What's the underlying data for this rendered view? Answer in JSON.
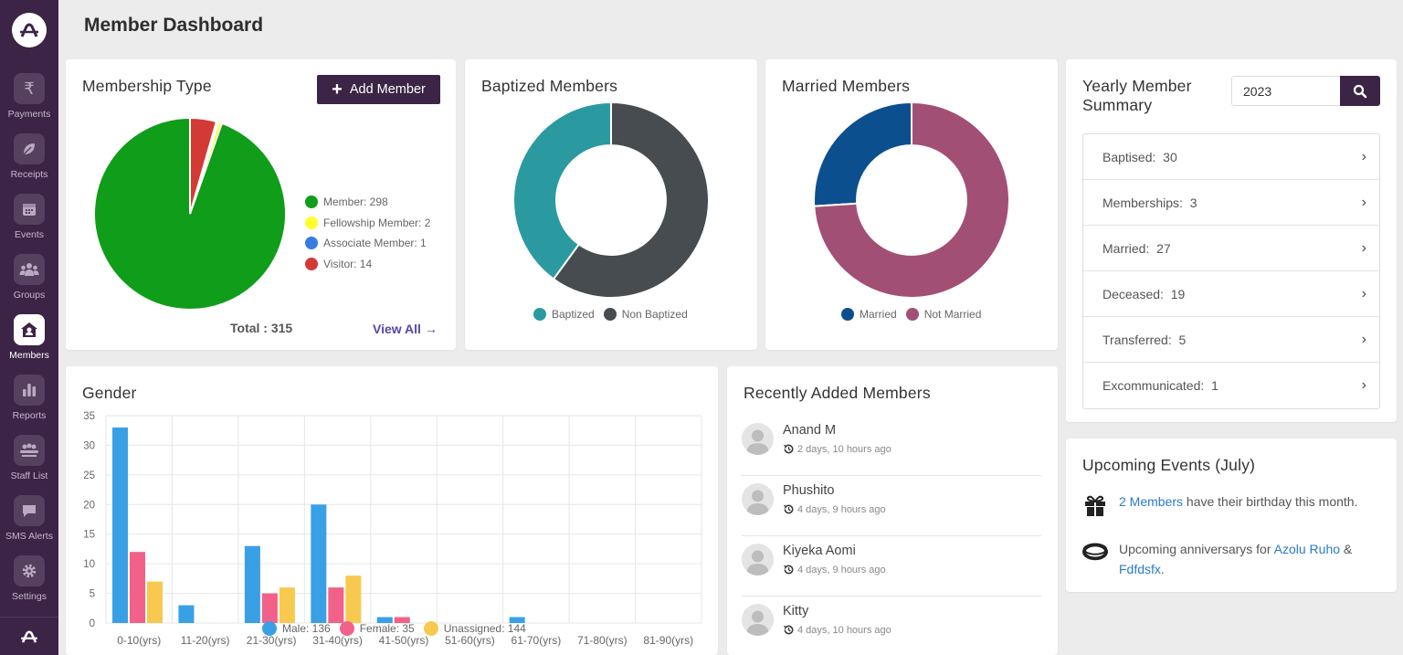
{
  "page": {
    "title": "Member Dashboard"
  },
  "sidebar": {
    "items": [
      {
        "label": "Payments",
        "icon": "rupee-icon"
      },
      {
        "label": "Receipts",
        "icon": "leaf-icon"
      },
      {
        "label": "Events",
        "icon": "calendar-icon"
      },
      {
        "label": "Groups",
        "icon": "group-icon"
      },
      {
        "label": "Members",
        "icon": "home-user-icon",
        "active": true
      },
      {
        "label": "Reports",
        "icon": "bar-chart-icon"
      },
      {
        "label": "Staff List",
        "icon": "staff-icon"
      },
      {
        "label": "SMS Alerts",
        "icon": "message-icon"
      },
      {
        "label": "Settings",
        "icon": "gear-icon"
      }
    ]
  },
  "membership": {
    "title": "Membership Type",
    "add_label": "Add Member",
    "total_label": "Total : 315",
    "view_all": "View All",
    "legend": [
      {
        "label": "Member: 298",
        "color": "#0f9d1a"
      },
      {
        "label": "Fellowship Member: 2",
        "color": "#ffff2b"
      },
      {
        "label": "Associate Member: 1",
        "color": "#3a7be0"
      },
      {
        "label": "Visitor: 14",
        "color": "#d43a35"
      }
    ]
  },
  "baptized": {
    "title": "Baptized Members",
    "legend": [
      {
        "label": "Baptized",
        "color": "#2a9aa0"
      },
      {
        "label": "Non Baptized",
        "color": "#474c51"
      }
    ]
  },
  "married": {
    "title": "Married Members",
    "legend": [
      {
        "label": "Married",
        "color": "#0c4f8e"
      },
      {
        "label": "Not Married",
        "color": "#a24f76"
      }
    ]
  },
  "yearly": {
    "title_line1": "Yearly Member",
    "title_line2": "Summary",
    "year_value": "2023",
    "rows": [
      {
        "label": "Baptised:",
        "value": "30"
      },
      {
        "label": "Memberships:",
        "value": "3"
      },
      {
        "label": "Married:",
        "value": "27"
      },
      {
        "label": "Deceased:",
        "value": "19"
      },
      {
        "label": "Transferred:",
        "value": "5"
      },
      {
        "label": "Excommunicated:",
        "value": "1"
      }
    ]
  },
  "gender": {
    "title": "Gender"
  },
  "recent": {
    "title": "Recently Added Members",
    "members": [
      {
        "name": "Anand M",
        "time": "2 days, 10 hours ago"
      },
      {
        "name": "Phushito",
        "time": "4 days, 9 hours ago"
      },
      {
        "name": "Kiyeka Aomi",
        "time": "4 days, 9 hours ago"
      },
      {
        "name": "Kitty",
        "time": "4 days, 10 hours ago"
      }
    ]
  },
  "events": {
    "title": "Upcoming Events (July)",
    "birthday_link": "2 Members",
    "birthday_text": " have their birthday this month.",
    "anniv_text": "Upcoming anniversarys for ",
    "anniv_link1": "Azolu Ruho",
    "anniv_amp": " &",
    "anniv_link2": "Fdfdsfx",
    "anniv_end": "."
  },
  "chart_data": [
    {
      "type": "pie",
      "title": "Membership Type",
      "labels": [
        "Member",
        "Fellowship Member",
        "Associate Member",
        "Visitor"
      ],
      "values": [
        298,
        2,
        1,
        14
      ],
      "colors": [
        "#0f9d1a",
        "#ffff2b",
        "#3a7be0",
        "#d43a35"
      ]
    },
    {
      "type": "pie",
      "title": "Baptized Members",
      "donut": true,
      "labels": [
        "Baptized",
        "Non Baptized"
      ],
      "values": [
        40,
        60
      ],
      "colors": [
        "#2a9aa0",
        "#474c51"
      ]
    },
    {
      "type": "pie",
      "title": "Married Members",
      "donut": true,
      "labels": [
        "Married",
        "Not Married"
      ],
      "values": [
        26,
        74
      ],
      "colors": [
        "#0c4f8e",
        "#a24f76"
      ]
    },
    {
      "type": "bar",
      "title": "Gender",
      "categories": [
        "0-10(yrs)",
        "11-20(yrs)",
        "21-30(yrs)",
        "31-40(yrs)",
        "41-50(yrs)",
        "51-60(yrs)",
        "61-70(yrs)",
        "71-80(yrs)",
        "81-90(yrs)"
      ],
      "ylim": [
        0,
        35
      ],
      "yticks": [
        0,
        5,
        10,
        15,
        20,
        25,
        30,
        35
      ],
      "grid": true,
      "series": [
        {
          "name": "Male",
          "legend": "Male: 136",
          "color": "#3aa0e6",
          "values": [
            33,
            3,
            13,
            20,
            1,
            0,
            1,
            0,
            0
          ]
        },
        {
          "name": "Female",
          "legend": "Female: 35",
          "color": "#f2618a",
          "values": [
            12,
            0,
            5,
            6,
            1,
            0,
            0,
            0,
            0
          ]
        },
        {
          "name": "Unassigned",
          "legend": "Unassigned: 144",
          "color": "#f8c94f",
          "values": [
            7,
            0,
            6,
            8,
            0,
            0,
            0,
            0,
            0
          ]
        }
      ]
    }
  ]
}
